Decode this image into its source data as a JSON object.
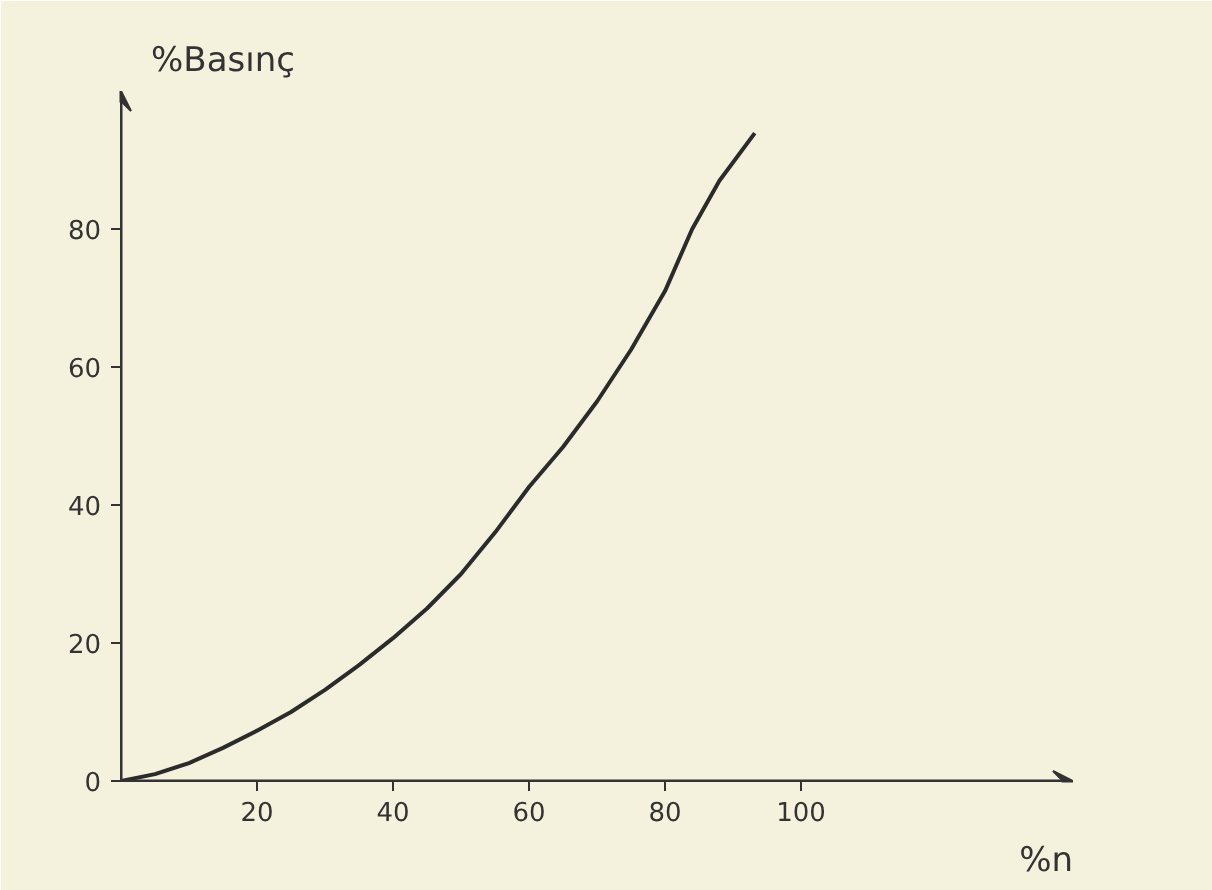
{
  "chart_data": {
    "type": "line",
    "xlabel": "%n",
    "ylabel": "%Basınç",
    "x": [
      0,
      5,
      10,
      15,
      20,
      25,
      30,
      35,
      40,
      45,
      50,
      55,
      60,
      65,
      70,
      75,
      80,
      84,
      88,
      93.2
    ],
    "values": [
      0,
      1,
      2.6,
      4.8,
      7.3,
      10,
      13.2,
      16.8,
      20.7,
      25,
      30,
      36,
      42.6,
      48.4,
      55,
      62.5,
      71,
      80,
      87,
      93.9
    ],
    "color": "#2b2b2b",
    "xlim": [
      0,
      140
    ],
    "ylim": [
      0,
      100
    ],
    "xticks": [
      20,
      40,
      60,
      80,
      100
    ],
    "yticks": [
      0,
      20,
      40,
      60,
      80
    ],
    "grid": false,
    "marker": "none",
    "line_style": "solid"
  }
}
